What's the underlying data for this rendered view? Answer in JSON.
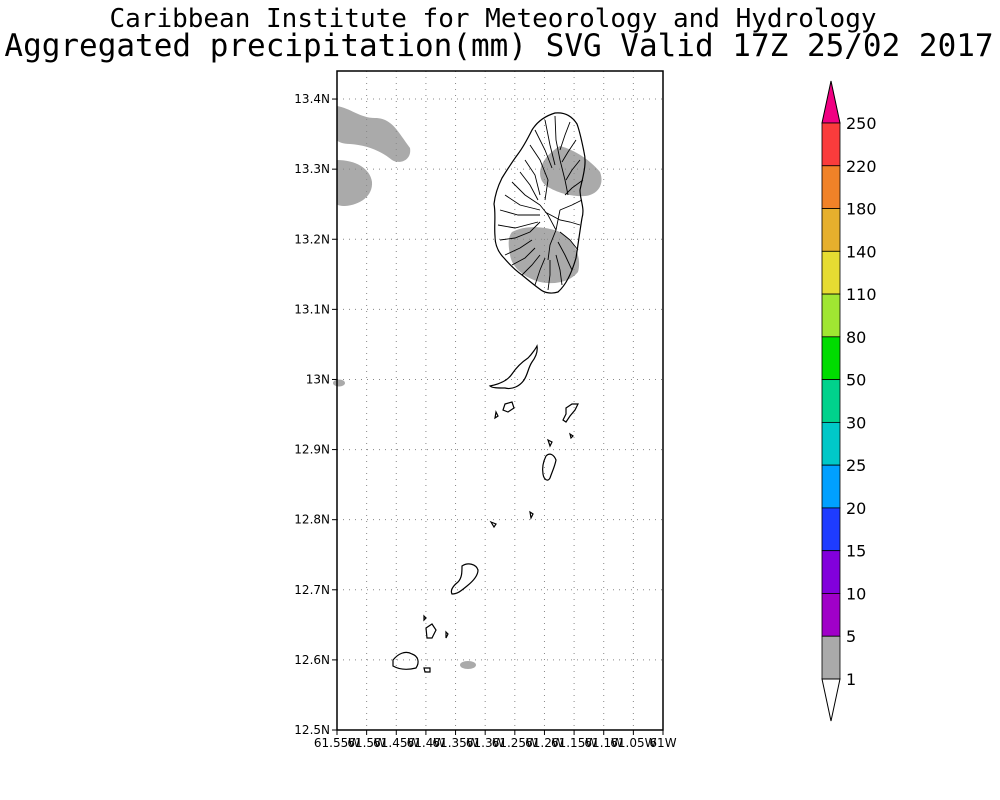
{
  "header": {
    "institute": "Caribbean Institute for Meteorology and Hydrology",
    "product": "Aggregated precipitation(mm) SVG Valid 17Z 25/02 2017"
  },
  "map": {
    "lon_range": [
      -61.55,
      -61.0
    ],
    "lat_range": [
      12.5,
      13.44
    ],
    "lat_ticks": [
      {
        "value": 13.4,
        "label": "13.4N"
      },
      {
        "value": 13.3,
        "label": "13.3N"
      },
      {
        "value": 13.2,
        "label": "13.2N"
      },
      {
        "value": 13.1,
        "label": "13.1N"
      },
      {
        "value": 13.0,
        "label": "13N"
      },
      {
        "value": 12.9,
        "label": "12.9N"
      },
      {
        "value": 12.8,
        "label": "12.8N"
      },
      {
        "value": 12.7,
        "label": "12.7N"
      },
      {
        "value": 12.6,
        "label": "12.6N"
      },
      {
        "value": 12.5,
        "label": "12.5N"
      }
    ],
    "lon_ticks": [
      {
        "value": -61.55,
        "label": "61.55W"
      },
      {
        "value": -61.5,
        "label": "61.5W"
      },
      {
        "value": -61.45,
        "label": "61.45W"
      },
      {
        "value": -61.4,
        "label": "61.4W"
      },
      {
        "value": -61.35,
        "label": "61.35W"
      },
      {
        "value": -61.3,
        "label": "61.3W"
      },
      {
        "value": -61.25,
        "label": "61.25W"
      },
      {
        "value": -61.2,
        "label": "61.2W"
      },
      {
        "value": -61.15,
        "label": "61.15W"
      },
      {
        "value": -61.1,
        "label": "61.1W"
      },
      {
        "value": -61.05,
        "label": "61.05W"
      },
      {
        "value": -61.0,
        "label": "61W"
      }
    ],
    "grid": "dotted",
    "precip_color": "#aaaaaa"
  },
  "colorbar": {
    "labels": [
      "1",
      "5",
      "10",
      "15",
      "20",
      "25",
      "30",
      "50",
      "80",
      "110",
      "140",
      "180",
      "220",
      "250"
    ],
    "colors": [
      "#aaaaaa",
      "#a000c8",
      "#8200dc",
      "#1e3cff",
      "#00a0ff",
      "#00c8c8",
      "#00d28c",
      "#00dc00",
      "#a0e632",
      "#e6dc32",
      "#e6af2d",
      "#f08228",
      "#fa3c3c",
      "#f00082"
    ],
    "under_color": "#ffffff",
    "over_color": "#f00082"
  }
}
